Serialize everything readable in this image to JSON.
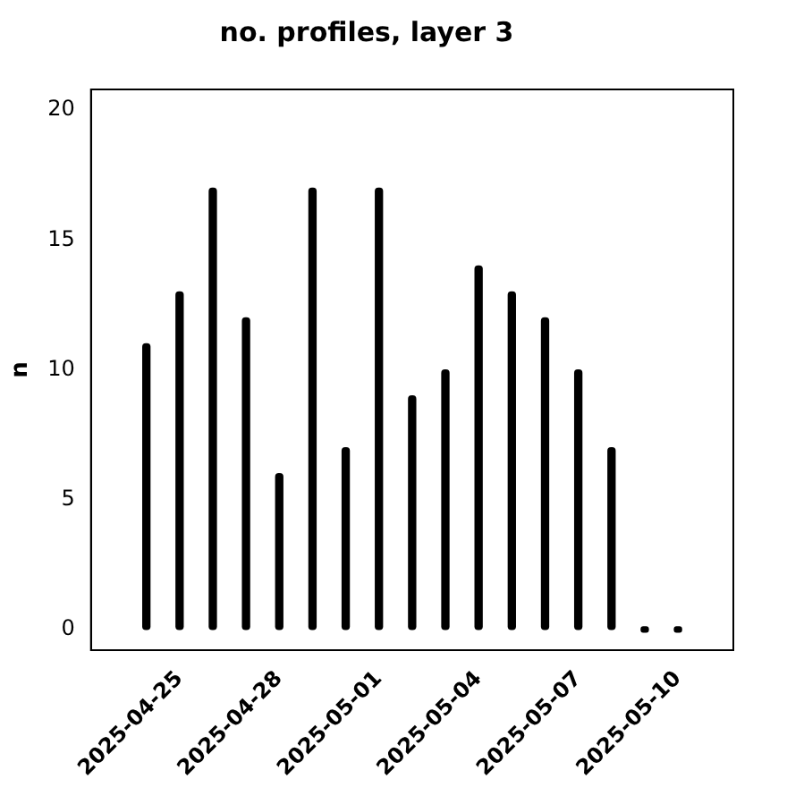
{
  "chart_data": {
    "type": "bar",
    "title": "no. profiles, layer 3",
    "ylabel": "n",
    "x": [
      "2025-04-24",
      "2025-04-25",
      "2025-04-26",
      "2025-04-27",
      "2025-04-28",
      "2025-04-29",
      "2025-04-30",
      "2025-05-01",
      "2025-05-02",
      "2025-05-03",
      "2025-05-04",
      "2025-05-05",
      "2025-05-06",
      "2025-05-07",
      "2025-05-08",
      "2025-05-09",
      "2025-05-10"
    ],
    "values": [
      11,
      13,
      17,
      12,
      6,
      17,
      7,
      17,
      9,
      10,
      14,
      13,
      12,
      10,
      7,
      0,
      0
    ],
    "color": "#000000",
    "xlim": [
      "2025-04-22T08:00",
      "2025-05-11T16:00"
    ],
    "xticks": [
      "2025-04-25",
      "2025-04-28",
      "2025-05-01",
      "2025-05-04",
      "2025-05-07",
      "2025-05-10"
    ],
    "ylim": [
      -0.8,
      20.8
    ],
    "yticks": [
      0,
      5,
      10,
      15,
      20
    ],
    "grid": false,
    "legend": false
  }
}
